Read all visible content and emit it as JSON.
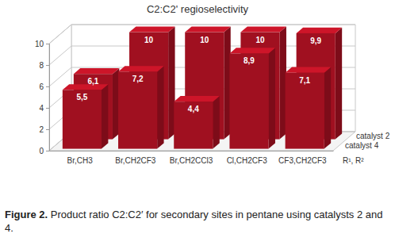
{
  "chart_data": {
    "type": "bar",
    "title": "C2:C2' regioselectivity",
    "x_label": "R¹, R²",
    "categories": [
      "Br,CH3",
      "Br,CH2CF3",
      "Br,CH2CCl3",
      "Cl,CH2CF3",
      "CF3,CH2CF3"
    ],
    "series": [
      {
        "name": "catalyst 2",
        "color": "#a01020",
        "values": [
          6.1,
          10,
          10,
          10,
          9.9
        ],
        "value_labels": [
          "6,1",
          "10",
          "10",
          "10",
          "9,9"
        ]
      },
      {
        "name": "catalyst 4",
        "color": "#a01020",
        "values": [
          5.5,
          7.2,
          4.4,
          8.9,
          7.1
        ],
        "value_labels": [
          "5,5",
          "7,2",
          "4,4",
          "8,9",
          "7,1"
        ]
      }
    ],
    "ylim": [
      0,
      10
    ],
    "yticks": [
      0,
      2,
      4,
      6,
      8,
      10
    ],
    "grid": true,
    "data_labels": true,
    "caption_label": "Figure 2.",
    "caption": "Product ratio C2:C2′ for secondary sites in pentane using catalysts 2 and 4."
  }
}
